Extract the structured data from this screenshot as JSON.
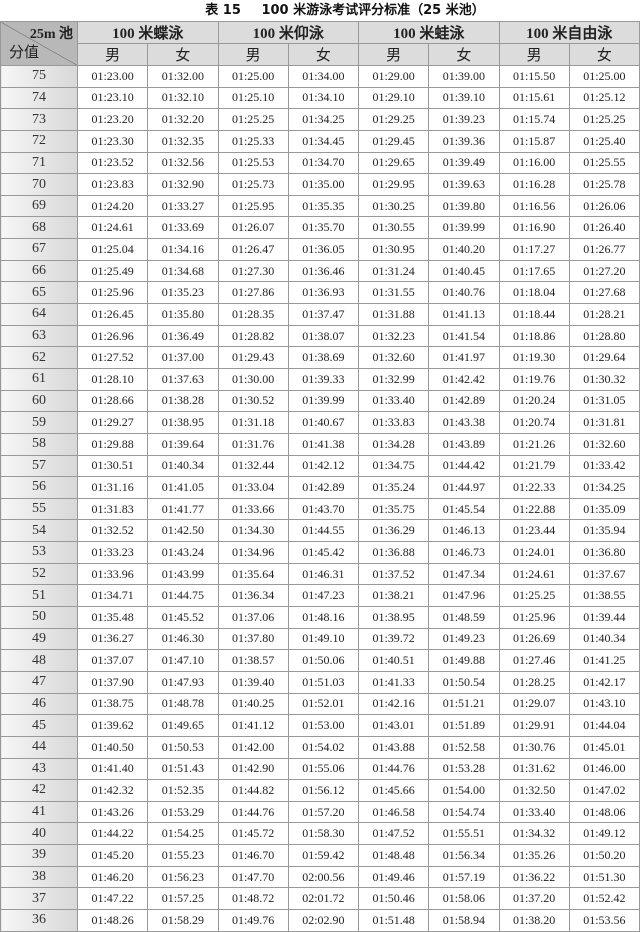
{
  "title": {
    "label": "表 15",
    "text": "100 米游泳考试评分标准（25 米池）"
  },
  "header": {
    "corner_top": "25m 池",
    "corner_bottom": "分值",
    "groups": [
      "100 米蝶泳",
      "100 米仰泳",
      "100 米蛙泳",
      "100 米自由泳"
    ],
    "genders": [
      "男",
      "女",
      "男",
      "女",
      "男",
      "女",
      "男",
      "女"
    ]
  },
  "rows": [
    {
      "score": "75",
      "values": [
        "01:23.00",
        "01:32.00",
        "01:25.00",
        "01:34.00",
        "01:29.00",
        "01:39.00",
        "01:15.50",
        "01:25.00"
      ]
    },
    {
      "score": "74",
      "values": [
        "01:23.10",
        "01:32.10",
        "01:25.10",
        "01:34.10",
        "01:29.10",
        "01:39.10",
        "01:15.61",
        "01:25.12"
      ]
    },
    {
      "score": "73",
      "values": [
        "01:23.20",
        "01:32.20",
        "01:25.25",
        "01:34.25",
        "01:29.25",
        "01:39.23",
        "01:15.74",
        "01:25.25"
      ]
    },
    {
      "score": "72",
      "values": [
        "01:23.30",
        "01:32.35",
        "01:25.33",
        "01:34.45",
        "01:29.45",
        "01:39.36",
        "01:15.87",
        "01:25.40"
      ]
    },
    {
      "score": "71",
      "values": [
        "01:23.52",
        "01:32.56",
        "01:25.53",
        "01:34.70",
        "01:29.65",
        "01:39.49",
        "01:16.00",
        "01:25.55"
      ]
    },
    {
      "score": "70",
      "values": [
        "01:23.83",
        "01:32.90",
        "01:25.73",
        "01:35.00",
        "01:29.95",
        "01:39.63",
        "01:16.28",
        "01:25.78"
      ]
    },
    {
      "score": "69",
      "values": [
        "01:24.20",
        "01:33.27",
        "01:25.95",
        "01:35.35",
        "01:30.25",
        "01:39.80",
        "01:16.56",
        "01:26.06"
      ]
    },
    {
      "score": "68",
      "values": [
        "01:24.61",
        "01:33.69",
        "01:26.07",
        "01:35.70",
        "01:30.55",
        "01:39.99",
        "01:16.90",
        "01:26.40"
      ]
    },
    {
      "score": "67",
      "values": [
        "01:25.04",
        "01:34.16",
        "01:26.47",
        "01:36.05",
        "01:30.95",
        "01:40.20",
        "01:17.27",
        "01:26.77"
      ]
    },
    {
      "score": "66",
      "values": [
        "01:25.49",
        "01:34.68",
        "01:27.30",
        "01:36.46",
        "01:31.24",
        "01:40.45",
        "01:17.65",
        "01:27.20"
      ]
    },
    {
      "score": "65",
      "values": [
        "01:25.96",
        "01:35.23",
        "01:27.86",
        "01:36.93",
        "01:31.55",
        "01:40.76",
        "01:18.04",
        "01:27.68"
      ]
    },
    {
      "score": "64",
      "values": [
        "01:26.45",
        "01:35.80",
        "01:28.35",
        "01:37.47",
        "01:31.88",
        "01:41.13",
        "01:18.44",
        "01:28.21"
      ]
    },
    {
      "score": "63",
      "values": [
        "01:26.96",
        "01:36.49",
        "01:28.82",
        "01:38.07",
        "01:32.23",
        "01:41.54",
        "01:18.86",
        "01:28.80"
      ]
    },
    {
      "score": "62",
      "values": [
        "01:27.52",
        "01:37.00",
        "01:29.43",
        "01:38.69",
        "01:32.60",
        "01:41.97",
        "01:19.30",
        "01:29.64"
      ]
    },
    {
      "score": "61",
      "values": [
        "01:28.10",
        "01:37.63",
        "01:30.00",
        "01:39.33",
        "01:32.99",
        "01:42.42",
        "01:19.76",
        "01:30.32"
      ]
    },
    {
      "score": "60",
      "values": [
        "01:28.66",
        "01:38.28",
        "01:30.52",
        "01:39.99",
        "01:33.40",
        "01:42.89",
        "01:20.24",
        "01:31.05"
      ]
    },
    {
      "score": "59",
      "values": [
        "01:29.27",
        "01:38.95",
        "01:31.18",
        "01:40.67",
        "01:33.83",
        "01:43.38",
        "01:20.74",
        "01:31.81"
      ]
    },
    {
      "score": "58",
      "values": [
        "01:29.88",
        "01:39.64",
        "01:31.76",
        "01:41.38",
        "01:34.28",
        "01:43.89",
        "01:21.26",
        "01:32.60"
      ]
    },
    {
      "score": "57",
      "values": [
        "01:30.51",
        "01:40.34",
        "01:32.44",
        "01:42.12",
        "01:34.75",
        "01:44.42",
        "01:21.79",
        "01:33.42"
      ]
    },
    {
      "score": "56",
      "values": [
        "01:31.16",
        "01:41.05",
        "01:33.04",
        "01:42.89",
        "01:35.24",
        "01:44.97",
        "01:22.33",
        "01:34.25"
      ]
    },
    {
      "score": "55",
      "values": [
        "01:31.83",
        "01:41.77",
        "01:33.66",
        "01:43.70",
        "01:35.75",
        "01:45.54",
        "01:22.88",
        "01:35.09"
      ]
    },
    {
      "score": "54",
      "values": [
        "01:32.52",
        "01:42.50",
        "01:34.30",
        "01:44.55",
        "01:36.29",
        "01:46.13",
        "01:23.44",
        "01:35.94"
      ]
    },
    {
      "score": "53",
      "values": [
        "01:33.23",
        "01:43.24",
        "01:34.96",
        "01:45.42",
        "01:36.88",
        "01:46.73",
        "01:24.01",
        "01:36.80"
      ]
    },
    {
      "score": "52",
      "values": [
        "01:33.96",
        "01:43.99",
        "01:35.64",
        "01:46.31",
        "01:37.52",
        "01:47.34",
        "01:24.61",
        "01:37.67"
      ]
    },
    {
      "score": "51",
      "values": [
        "01:34.71",
        "01:44.75",
        "01:36.34",
        "01:47.23",
        "01:38.21",
        "01:47.96",
        "01:25.25",
        "01:38.55"
      ]
    },
    {
      "score": "50",
      "values": [
        "01:35.48",
        "01:45.52",
        "01:37.06",
        "01:48.16",
        "01:38.95",
        "01:48.59",
        "01:25.96",
        "01:39.44"
      ]
    },
    {
      "score": "49",
      "values": [
        "01:36.27",
        "01:46.30",
        "01:37.80",
        "01:49.10",
        "01:39.72",
        "01:49.23",
        "01:26.69",
        "01:40.34"
      ]
    },
    {
      "score": "48",
      "values": [
        "01:37.07",
        "01:47.10",
        "01:38.57",
        "01:50.06",
        "01:40.51",
        "01:49.88",
        "01:27.46",
        "01:41.25"
      ]
    },
    {
      "score": "47",
      "values": [
        "01:37.90",
        "01:47.93",
        "01:39.40",
        "01:51.03",
        "01:41.33",
        "01:50.54",
        "01:28.25",
        "01:42.17"
      ]
    },
    {
      "score": "46",
      "values": [
        "01:38.75",
        "01:48.78",
        "01:40.25",
        "01:52.01",
        "01:42.16",
        "01:51.21",
        "01:29.07",
        "01:43.10"
      ]
    },
    {
      "score": "45",
      "values": [
        "01:39.62",
        "01:49.65",
        "01:41.12",
        "01:53.00",
        "01:43.01",
        "01:51.89",
        "01:29.91",
        "01:44.04"
      ]
    },
    {
      "score": "44",
      "values": [
        "01:40.50",
        "01:50.53",
        "01:42.00",
        "01:54.02",
        "01:43.88",
        "01:52.58",
        "01:30.76",
        "01:45.01"
      ]
    },
    {
      "score": "43",
      "values": [
        "01:41.40",
        "01:51.43",
        "01:42.90",
        "01:55.06",
        "01:44.76",
        "01:53.28",
        "01:31.62",
        "01:46.00"
      ]
    },
    {
      "score": "42",
      "values": [
        "01:42.32",
        "01:52.35",
        "01:44.82",
        "01:56.12",
        "01:45.66",
        "01:54.00",
        "01:32.50",
        "01:47.02"
      ]
    },
    {
      "score": "41",
      "values": [
        "01:43.26",
        "01:53.29",
        "01:44.76",
        "01:57.20",
        "01:46.58",
        "01:54.74",
        "01:33.40",
        "01:48.06"
      ]
    },
    {
      "score": "40",
      "values": [
        "01:44.22",
        "01:54.25",
        "01:45.72",
        "01:58.30",
        "01:47.52",
        "01:55.51",
        "01:34.32",
        "01:49.12"
      ]
    },
    {
      "score": "39",
      "values": [
        "01:45.20",
        "01:55.23",
        "01:46.70",
        "01:59.42",
        "01:48.48",
        "01:56.34",
        "01:35.26",
        "01:50.20"
      ]
    },
    {
      "score": "38",
      "values": [
        "01:46.20",
        "01:56.23",
        "01:47.70",
        "02:00.56",
        "01:49.46",
        "01:57.19",
        "01:36.22",
        "01:51.30"
      ]
    },
    {
      "score": "37",
      "values": [
        "01:47.22",
        "01:57.25",
        "01:48.72",
        "02:01.72",
        "01:50.46",
        "01:58.06",
        "01:37.20",
        "01:52.42"
      ]
    },
    {
      "score": "36",
      "values": [
        "01:48.26",
        "01:58.29",
        "01:49.76",
        "02:02.90",
        "01:51.48",
        "01:58.94",
        "01:38.20",
        "01:53.56"
      ]
    }
  ]
}
